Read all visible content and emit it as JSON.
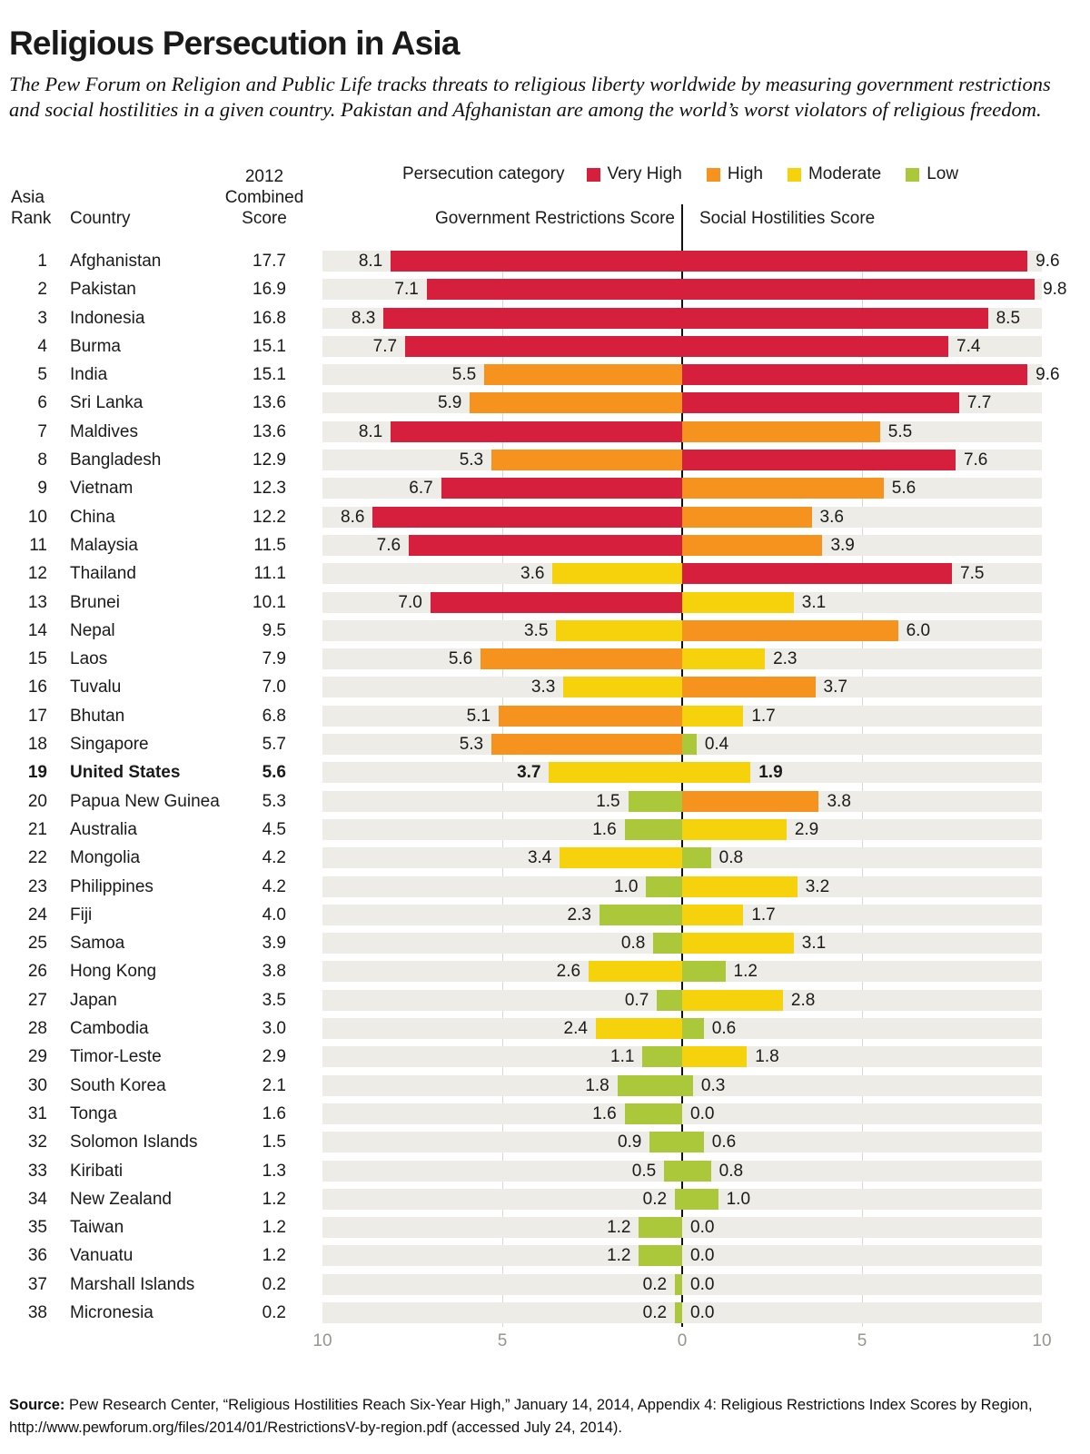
{
  "title": "Religious Persecution in Asia",
  "subtitle": "The Pew Forum on Religion and Public Life tracks threats to religious liberty worldwide by measuring government restrictions and social hostilities in a given country. Pakistan and Afghanistan are among the world’s worst violators of religious freedom.",
  "table_headers": {
    "rank_line1": "Asia",
    "rank_line2": "Rank",
    "country": "Country",
    "score_line1": "2012",
    "score_line2": "Combined",
    "score_line3": "Score"
  },
  "legend": {
    "label": "Persecution category",
    "items": [
      {
        "label": "Very High",
        "level": "very_high"
      },
      {
        "label": "High",
        "level": "high"
      },
      {
        "label": "Moderate",
        "level": "moderate"
      },
      {
        "label": "Low",
        "level": "low"
      }
    ]
  },
  "colors": {
    "very_high": "#d51f3c",
    "high": "#f6921e",
    "moderate": "#f5d20b",
    "low": "#abc83b",
    "band": "#edece6",
    "gridline": "#d9d7cf",
    "axis_text": "#97968e",
    "center_line": "#111111"
  },
  "axis": {
    "left_title": "Government Restrictions Score",
    "right_title": "Social Hostilities Score",
    "ticks": [
      "10",
      "5",
      "0",
      "5",
      "10"
    ],
    "tick_values": [
      -10,
      -5,
      0,
      5,
      10
    ],
    "max_each_side": 10
  },
  "source": {
    "label": "Source:",
    "text": " Pew Research Center, “Religious Hostilities Reach Six-Year High,” January 14, 2014, Appendix 4: Religious Restrictions Index Scores by Region,",
    "line2": "http://www.pewforum.org/files/2014/01/RestrictionsV-by-region.pdf (accessed July 24, 2014)."
  },
  "chart_data": {
    "type": "bar",
    "orientation": "horizontal-diverging",
    "title": "Religious Persecution in Asia",
    "series_names": [
      "Government Restrictions Score",
      "Social Hostilities Score"
    ],
    "xlim_each_side": [
      0,
      10
    ],
    "grid": true,
    "legend_position": "top",
    "rows": [
      {
        "rank": 1,
        "country": "Afghanistan",
        "combined": 17.7,
        "gov": 8.1,
        "gov_level": "very_high",
        "soc": 9.6,
        "soc_level": "very_high",
        "bold": false
      },
      {
        "rank": 2,
        "country": "Pakistan",
        "combined": 16.9,
        "gov": 7.1,
        "gov_level": "very_high",
        "soc": 9.8,
        "soc_level": "very_high",
        "bold": false
      },
      {
        "rank": 3,
        "country": "Indonesia",
        "combined": 16.8,
        "gov": 8.3,
        "gov_level": "very_high",
        "soc": 8.5,
        "soc_level": "very_high",
        "bold": false
      },
      {
        "rank": 4,
        "country": "Burma",
        "combined": 15.1,
        "gov": 7.7,
        "gov_level": "very_high",
        "soc": 7.4,
        "soc_level": "very_high",
        "bold": false
      },
      {
        "rank": 5,
        "country": "India",
        "combined": 15.1,
        "gov": 5.5,
        "gov_level": "high",
        "soc": 9.6,
        "soc_level": "very_high",
        "bold": false
      },
      {
        "rank": 6,
        "country": "Sri Lanka",
        "combined": 13.6,
        "gov": 5.9,
        "gov_level": "high",
        "soc": 7.7,
        "soc_level": "very_high",
        "bold": false
      },
      {
        "rank": 7,
        "country": "Maldives",
        "combined": 13.6,
        "gov": 8.1,
        "gov_level": "very_high",
        "soc": 5.5,
        "soc_level": "high",
        "bold": false
      },
      {
        "rank": 8,
        "country": "Bangladesh",
        "combined": 12.9,
        "gov": 5.3,
        "gov_level": "high",
        "soc": 7.6,
        "soc_level": "very_high",
        "bold": false
      },
      {
        "rank": 9,
        "country": "Vietnam",
        "combined": 12.3,
        "gov": 6.7,
        "gov_level": "very_high",
        "soc": 5.6,
        "soc_level": "high",
        "bold": false
      },
      {
        "rank": 10,
        "country": "China",
        "combined": 12.2,
        "gov": 8.6,
        "gov_level": "very_high",
        "soc": 3.6,
        "soc_level": "high",
        "bold": false
      },
      {
        "rank": 11,
        "country": "Malaysia",
        "combined": 11.5,
        "gov": 7.6,
        "gov_level": "very_high",
        "soc": 3.9,
        "soc_level": "high",
        "bold": false
      },
      {
        "rank": 12,
        "country": "Thailand",
        "combined": 11.1,
        "gov": 3.6,
        "gov_level": "moderate",
        "soc": 7.5,
        "soc_level": "very_high",
        "bold": false
      },
      {
        "rank": 13,
        "country": "Brunei",
        "combined": 10.1,
        "gov": 7.0,
        "gov_level": "very_high",
        "soc": 3.1,
        "soc_level": "moderate",
        "bold": false
      },
      {
        "rank": 14,
        "country": "Nepal",
        "combined": 9.5,
        "gov": 3.5,
        "gov_level": "moderate",
        "soc": 6.0,
        "soc_level": "high",
        "bold": false
      },
      {
        "rank": 15,
        "country": "Laos",
        "combined": 7.9,
        "gov": 5.6,
        "gov_level": "high",
        "soc": 2.3,
        "soc_level": "moderate",
        "bold": false
      },
      {
        "rank": 16,
        "country": "Tuvalu",
        "combined": 7.0,
        "gov": 3.3,
        "gov_level": "moderate",
        "soc": 3.7,
        "soc_level": "high",
        "bold": false
      },
      {
        "rank": 17,
        "country": "Bhutan",
        "combined": 6.8,
        "gov": 5.1,
        "gov_level": "high",
        "soc": 1.7,
        "soc_level": "moderate",
        "bold": false
      },
      {
        "rank": 18,
        "country": "Singapore",
        "combined": 5.7,
        "gov": 5.3,
        "gov_level": "high",
        "soc": 0.4,
        "soc_level": "low",
        "bold": false
      },
      {
        "rank": 19,
        "country": "United States",
        "combined": 5.6,
        "gov": 3.7,
        "gov_level": "moderate",
        "soc": 1.9,
        "soc_level": "moderate",
        "bold": true
      },
      {
        "rank": 20,
        "country": "Papua New Guinea",
        "combined": 5.3,
        "gov": 1.5,
        "gov_level": "low",
        "soc": 3.8,
        "soc_level": "high",
        "bold": false
      },
      {
        "rank": 21,
        "country": "Australia",
        "combined": 4.5,
        "gov": 1.6,
        "gov_level": "low",
        "soc": 2.9,
        "soc_level": "moderate",
        "bold": false
      },
      {
        "rank": 22,
        "country": "Mongolia",
        "combined": 4.2,
        "gov": 3.4,
        "gov_level": "moderate",
        "soc": 0.8,
        "soc_level": "low",
        "bold": false
      },
      {
        "rank": 23,
        "country": "Philippines",
        "combined": 4.2,
        "gov": 1.0,
        "gov_level": "low",
        "soc": 3.2,
        "soc_level": "moderate",
        "bold": false
      },
      {
        "rank": 24,
        "country": "Fiji",
        "combined": 4.0,
        "gov": 2.3,
        "gov_level": "low",
        "soc": 1.7,
        "soc_level": "moderate",
        "bold": false
      },
      {
        "rank": 25,
        "country": "Samoa",
        "combined": 3.9,
        "gov": 0.8,
        "gov_level": "low",
        "soc": 3.1,
        "soc_level": "moderate",
        "bold": false
      },
      {
        "rank": 26,
        "country": "Hong Kong",
        "combined": 3.8,
        "gov": 2.6,
        "gov_level": "moderate",
        "soc": 1.2,
        "soc_level": "low",
        "bold": false
      },
      {
        "rank": 27,
        "country": "Japan",
        "combined": 3.5,
        "gov": 0.7,
        "gov_level": "low",
        "soc": 2.8,
        "soc_level": "moderate",
        "bold": false
      },
      {
        "rank": 28,
        "country": "Cambodia",
        "combined": 3.0,
        "gov": 2.4,
        "gov_level": "moderate",
        "soc": 0.6,
        "soc_level": "low",
        "bold": false
      },
      {
        "rank": 29,
        "country": "Timor-Leste",
        "combined": 2.9,
        "gov": 1.1,
        "gov_level": "low",
        "soc": 1.8,
        "soc_level": "moderate",
        "bold": false
      },
      {
        "rank": 30,
        "country": "South Korea",
        "combined": 2.1,
        "gov": 1.8,
        "gov_level": "low",
        "soc": 0.3,
        "soc_level": "low",
        "bold": false
      },
      {
        "rank": 31,
        "country": "Tonga",
        "combined": 1.6,
        "gov": 1.6,
        "gov_level": "low",
        "soc": 0.0,
        "soc_level": "low",
        "bold": false
      },
      {
        "rank": 32,
        "country": "Solomon Islands",
        "combined": 1.5,
        "gov": 0.9,
        "gov_level": "low",
        "soc": 0.6,
        "soc_level": "low",
        "bold": false
      },
      {
        "rank": 33,
        "country": "Kiribati",
        "combined": 1.3,
        "gov": 0.5,
        "gov_level": "low",
        "soc": 0.8,
        "soc_level": "low",
        "bold": false
      },
      {
        "rank": 34,
        "country": "New Zealand",
        "combined": 1.2,
        "gov": 0.2,
        "gov_level": "low",
        "soc": 1.0,
        "soc_level": "low",
        "bold": false
      },
      {
        "rank": 35,
        "country": "Taiwan",
        "combined": 1.2,
        "gov": 1.2,
        "gov_level": "low",
        "soc": 0.0,
        "soc_level": "low",
        "bold": false
      },
      {
        "rank": 36,
        "country": "Vanuatu",
        "combined": 1.2,
        "gov": 1.2,
        "gov_level": "low",
        "soc": 0.0,
        "soc_level": "low",
        "bold": false
      },
      {
        "rank": 37,
        "country": "Marshall Islands",
        "combined": 0.2,
        "gov": 0.2,
        "gov_level": "low",
        "soc": 0.0,
        "soc_level": "low",
        "bold": false
      },
      {
        "rank": 38,
        "country": "Micronesia",
        "combined": 0.2,
        "gov": 0.2,
        "gov_level": "low",
        "soc": 0.0,
        "soc_level": "low",
        "bold": false
      }
    ]
  }
}
